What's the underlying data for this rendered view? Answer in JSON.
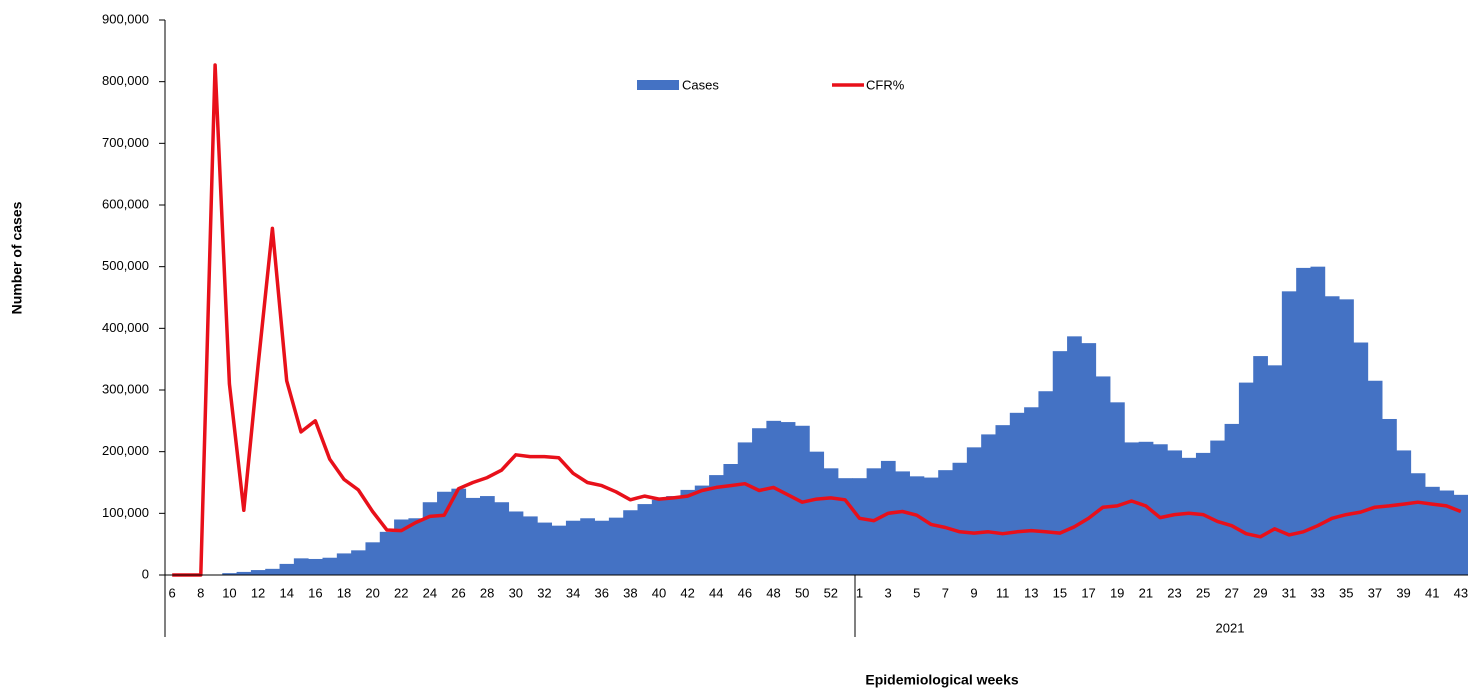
{
  "chart_data": {
    "type": "bar_line",
    "y_axis_label": "Number of cases",
    "x_axis_label": "Epidemiological weeks",
    "year_label": "2021",
    "categories": [
      "6",
      null,
      "8",
      null,
      "10",
      null,
      "12",
      null,
      "14",
      null,
      "16",
      null,
      "18",
      null,
      "20",
      null,
      "22",
      null,
      "24",
      null,
      "26",
      null,
      "28",
      null,
      "30",
      null,
      "32",
      null,
      "34",
      null,
      "36",
      null,
      "38",
      null,
      "40",
      null,
      "42",
      null,
      "44",
      null,
      "46",
      null,
      "48",
      null,
      "50",
      null,
      "52",
      null,
      "1",
      null,
      "3",
      null,
      "5",
      null,
      "7",
      null,
      "9",
      null,
      "11",
      null,
      "13",
      null,
      "15",
      null,
      "17",
      null,
      "19",
      null,
      "21",
      null,
      "23",
      null,
      "25",
      null,
      "27",
      null,
      "29",
      null,
      "31",
      null,
      "33",
      null,
      "35",
      null,
      "37",
      null,
      "39",
      null,
      "41",
      null,
      "43"
    ],
    "series": [
      {
        "name": "Cases",
        "kind": "bar",
        "color": "#4472c4",
        "values": [
          0,
          0,
          0,
          0,
          3000,
          5000,
          8000,
          10000,
          18000,
          27000,
          26000,
          28000,
          35000,
          40000,
          53000,
          70000,
          90000,
          92000,
          118000,
          135000,
          140000,
          125000,
          128000,
          118000,
          103000,
          95000,
          85000,
          80000,
          88000,
          92000,
          88000,
          93000,
          105000,
          115000,
          122000,
          128000,
          138000,
          145000,
          162000,
          180000,
          215000,
          238000,
          250000,
          248000,
          242000,
          200000,
          173000,
          157000,
          157000,
          173000,
          185000,
          168000,
          160000,
          158000,
          170000,
          182000,
          207000,
          228000,
          243000,
          263000,
          272000,
          298000,
          363000,
          387000,
          376000,
          322000,
          280000,
          215000,
          216000,
          212000,
          202000,
          190000,
          198000,
          218000,
          245000,
          312000,
          355000,
          340000,
          460000,
          498000,
          500000,
          452000,
          447000,
          377000,
          315000,
          253000,
          202000,
          165000,
          143000,
          137000,
          130000
        ]
      },
      {
        "name": "CFR%",
        "kind": "line",
        "color": "#e8101a",
        "values": [
          0,
          0,
          0,
          827000,
          310000,
          105000,
          340000,
          562000,
          315000,
          232000,
          250000,
          188000,
          155000,
          138000,
          103000,
          73000,
          72000,
          85000,
          95000,
          97000,
          140000,
          150000,
          158000,
          170000,
          195000,
          192000,
          192000,
          190000,
          165000,
          150000,
          145000,
          135000,
          122000,
          128000,
          123000,
          125000,
          128000,
          137000,
          142000,
          145000,
          148000,
          137000,
          142000,
          130000,
          118000,
          123000,
          125000,
          122000,
          92000,
          88000,
          100000,
          103000,
          97000,
          82000,
          77000,
          70000,
          68000,
          70000,
          67000,
          70000,
          72000,
          70000,
          68000,
          78000,
          92000,
          110000,
          112000,
          120000,
          112000,
          93000,
          98000,
          100000,
          98000,
          87000,
          80000,
          67000,
          62000,
          75000,
          65000,
          70000,
          80000,
          92000,
          98000,
          102000,
          110000,
          112000,
          115000,
          118000,
          115000,
          112000,
          103000
        ]
      }
    ],
    "ylim": [
      0,
      900000
    ],
    "yticks": [
      0,
      {
        "value": 100000,
        "label": "100,000"
      },
      {
        "value": 200000,
        "label": "200,000"
      },
      {
        "value": 300000,
        "label": "300,000"
      },
      {
        "value": 400000,
        "label": "400,000"
      },
      {
        "value": 500000,
        "label": "500,000"
      },
      {
        "value": 600000,
        "label": "600,000"
      },
      {
        "value": 700000,
        "label": "700,000"
      },
      {
        "value": 800000,
        "label": "800,000"
      },
      {
        "value": 900000,
        "label": "900,000"
      }
    ]
  }
}
